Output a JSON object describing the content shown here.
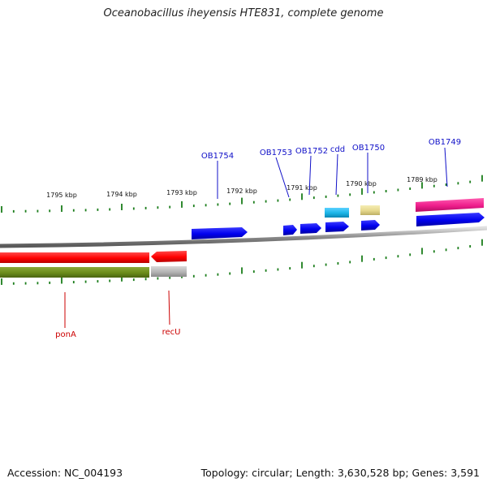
{
  "title": "Oceanobacillus iheyensis HTE831, complete genome",
  "footer": {
    "accession": "Accession: NC_004193",
    "topology": "Topology: circular; Length: 3,630,528 bp; Genes: 3,591"
  },
  "scale_labels": [
    "1795 kbp",
    "1794 kbp",
    "1793 kbp",
    "1792 kbp",
    "1791 kbp",
    "1790 kbp",
    "1789 kbp"
  ],
  "genes_top": [
    "OB1754",
    "OB1753",
    "OB1752",
    "cdd",
    "OB1750",
    "OB1749"
  ],
  "genes_bottom": [
    "ponA",
    "recU"
  ],
  "colors": {
    "backbone": "#8c8c8c",
    "forward_cds": "#0000ee",
    "reverse_cds": "#ff0000",
    "label_top": "#1010c8",
    "label_bottom": "#cc0000",
    "tick": "#1b7d1b",
    "olive": "#6b8c1a",
    "gray": "#b4b4b4",
    "cyan": "#1ab4e6",
    "khaki": "#e6d88c",
    "magenta": "#ee1e8c"
  }
}
